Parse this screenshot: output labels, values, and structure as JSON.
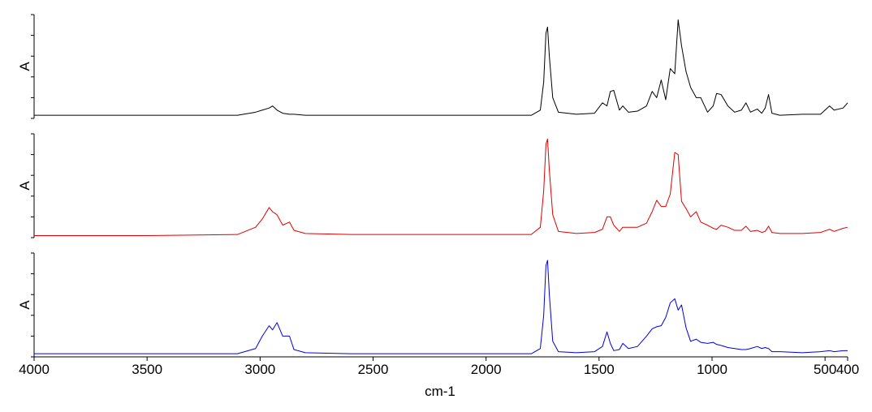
{
  "chart_data": {
    "type": "line",
    "xlabel": "cm-1",
    "x": [
      4000,
      3500,
      3100,
      3020,
      2990,
      2960,
      2945,
      2925,
      2900,
      2870,
      2850,
      2800,
      2600,
      2000,
      1800,
      1760,
      1745,
      1735,
      1728,
      1720,
      1705,
      1680,
      1600,
      1520,
      1485,
      1465,
      1450,
      1435,
      1410,
      1395,
      1370,
      1330,
      1290,
      1265,
      1245,
      1225,
      1205,
      1185,
      1165,
      1150,
      1135,
      1115,
      1095,
      1070,
      1050,
      1020,
      995,
      980,
      960,
      930,
      900,
      870,
      850,
      830,
      800,
      780,
      765,
      750,
      735,
      700,
      600,
      520,
      480,
      460,
      420,
      400
    ],
    "xlim": [
      4000,
      400
    ],
    "xticks": [
      4000,
      3500,
      3000,
      2500,
      2000,
      1500,
      1000,
      500,
      400
    ],
    "ylim": [
      0,
      1
    ],
    "yticks": [
      0,
      0.2,
      0.4,
      0.6,
      0.8,
      1
    ],
    "series": [
      {
        "ylabel": "A",
        "color": "#000000",
        "values": [
          0.03,
          0.03,
          0.03,
          0.06,
          0.08,
          0.1,
          0.12,
          0.08,
          0.05,
          0.04,
          0.04,
          0.03,
          0.03,
          0.03,
          0.03,
          0.08,
          0.35,
          0.82,
          0.88,
          0.6,
          0.2,
          0.06,
          0.04,
          0.05,
          0.15,
          0.12,
          0.26,
          0.27,
          0.08,
          0.12,
          0.06,
          0.07,
          0.12,
          0.26,
          0.2,
          0.37,
          0.18,
          0.48,
          0.43,
          0.95,
          0.7,
          0.45,
          0.3,
          0.2,
          0.2,
          0.06,
          0.12,
          0.24,
          0.23,
          0.12,
          0.06,
          0.08,
          0.15,
          0.06,
          0.09,
          0.05,
          0.1,
          0.23,
          0.05,
          0.03,
          0.04,
          0.04,
          0.12,
          0.08,
          0.1,
          0.15
        ]
      },
      {
        "ylabel": "A",
        "color": "#e00000",
        "values": [
          0.02,
          0.02,
          0.03,
          0.1,
          0.18,
          0.29,
          0.25,
          0.22,
          0.12,
          0.15,
          0.07,
          0.04,
          0.03,
          0.03,
          0.03,
          0.1,
          0.45,
          0.9,
          0.95,
          0.65,
          0.22,
          0.06,
          0.04,
          0.05,
          0.08,
          0.2,
          0.2,
          0.12,
          0.06,
          0.1,
          0.1,
          0.1,
          0.14,
          0.25,
          0.36,
          0.3,
          0.3,
          0.42,
          0.82,
          0.8,
          0.35,
          0.28,
          0.2,
          0.25,
          0.15,
          0.12,
          0.09,
          0.08,
          0.12,
          0.1,
          0.07,
          0.07,
          0.11,
          0.06,
          0.07,
          0.05,
          0.06,
          0.11,
          0.05,
          0.04,
          0.04,
          0.05,
          0.08,
          0.06,
          0.09,
          0.1
        ]
      },
      {
        "ylabel": "A",
        "color": "#0000e0",
        "values": [
          0.03,
          0.03,
          0.03,
          0.08,
          0.2,
          0.3,
          0.26,
          0.33,
          0.2,
          0.2,
          0.07,
          0.04,
          0.03,
          0.03,
          0.03,
          0.08,
          0.4,
          0.88,
          0.93,
          0.6,
          0.15,
          0.05,
          0.04,
          0.05,
          0.1,
          0.24,
          0.13,
          0.06,
          0.07,
          0.13,
          0.08,
          0.1,
          0.2,
          0.27,
          0.29,
          0.3,
          0.38,
          0.52,
          0.56,
          0.45,
          0.5,
          0.28,
          0.15,
          0.17,
          0.14,
          0.13,
          0.14,
          0.12,
          0.11,
          0.09,
          0.08,
          0.07,
          0.07,
          0.08,
          0.1,
          0.08,
          0.09,
          0.08,
          0.05,
          0.05,
          0.04,
          0.05,
          0.06,
          0.05,
          0.06,
          0.06
        ]
      }
    ]
  }
}
